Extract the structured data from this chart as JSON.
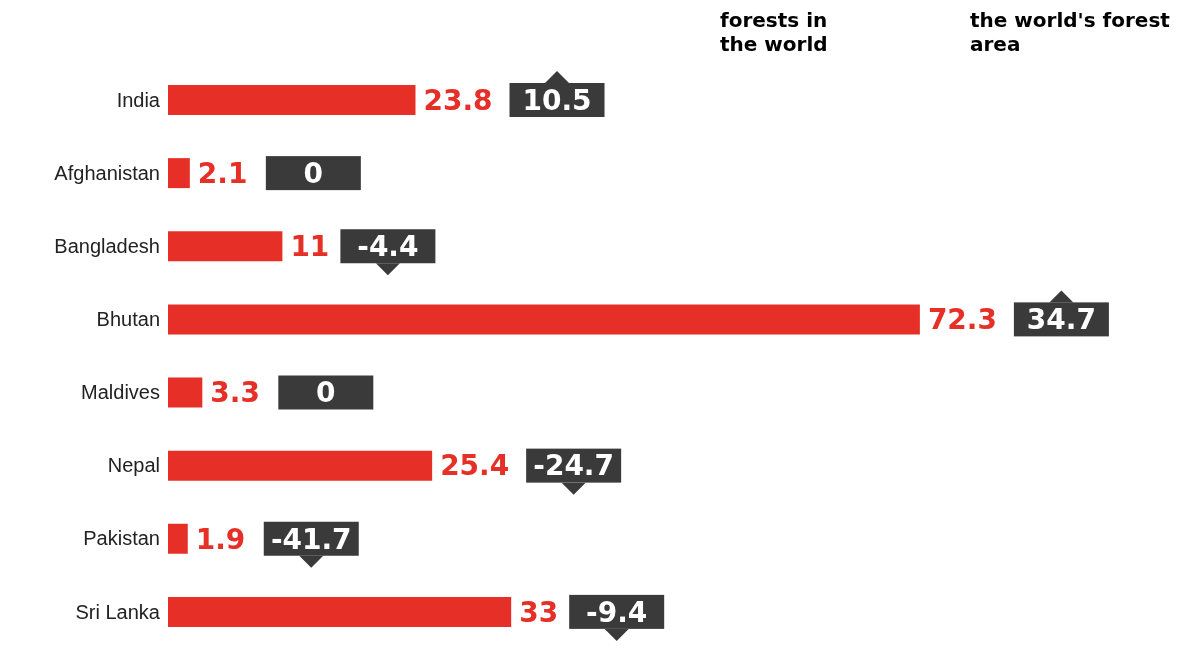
{
  "chart_data": {
    "type": "bar",
    "orientation": "horizontal",
    "data_labels": true,
    "categories": [
      "India",
      "Afghanistan",
      "Bangladesh",
      "Bhutan",
      "Maldives",
      "Nepal",
      "Pakistan",
      "Sri Lanka"
    ],
    "values": [
      23.8,
      2.1,
      11,
      72.3,
      3.3,
      25.4,
      1.9,
      33
    ],
    "color": "#e63027",
    "annotations": [
      "forests in the world",
      "the world's forest area",
      "10.5",
      "0",
      "-4.4",
      "34.7",
      "0",
      "-24.7",
      "-41.7",
      "-9.4"
    ]
  }
}
